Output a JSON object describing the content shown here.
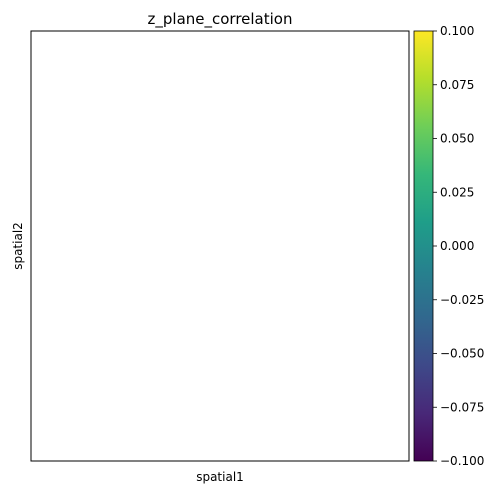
{
  "chart_data": {
    "type": "scatter",
    "title": "z_plane_correlation",
    "xlabel": "spatial1",
    "ylabel": "spatial2",
    "points": [],
    "colorbar": {
      "colormap": "viridis",
      "min": -0.1,
      "max": 0.1,
      "ticks": [
        "0.100",
        "0.075",
        "0.050",
        "0.025",
        "0.000",
        "−0.025",
        "−0.050",
        "−0.075",
        "−0.100"
      ],
      "tick_values": [
        0.1,
        0.075,
        0.05,
        0.025,
        0.0,
        -0.025,
        -0.05,
        -0.075,
        -0.1
      ]
    },
    "grid": false,
    "x_ticks_visible": false,
    "y_ticks_visible": false
  },
  "colors": {
    "viridis_stops": [
      "#440154",
      "#482878",
      "#3e4989",
      "#31688e",
      "#26828e",
      "#1f9e89",
      "#35b779",
      "#6ece58",
      "#b5de2b",
      "#fde725"
    ]
  }
}
